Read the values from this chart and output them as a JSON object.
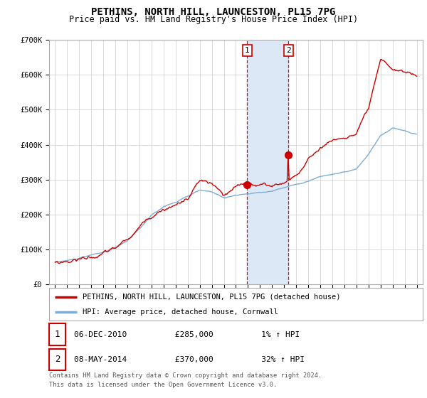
{
  "title": "PETHINS, NORTH HILL, LAUNCESTON, PL15 7PG",
  "subtitle": "Price paid vs. HM Land Registry's House Price Index (HPI)",
  "legend_line1": "PETHINS, NORTH HILL, LAUNCESTON, PL15 7PG (detached house)",
  "legend_line2": "HPI: Average price, detached house, Cornwall",
  "transaction1_label": "1",
  "transaction1_date": "06-DEC-2010",
  "transaction1_price": "£285,000",
  "transaction1_hpi": "1% ↑ HPI",
  "transaction2_label": "2",
  "transaction2_date": "08-MAY-2014",
  "transaction2_price": "£370,000",
  "transaction2_hpi": "32% ↑ HPI",
  "footer_line1": "Contains HM Land Registry data © Crown copyright and database right 2024.",
  "footer_line2": "This data is licensed under the Open Government Licence v3.0.",
  "hpi_color": "#7dadd4",
  "price_color": "#cc0000",
  "marker_color": "#cc0000",
  "vline_color": "#cc0000",
  "shade_color": "#dce8f5",
  "grid_color": "#cccccc",
  "background_color": "#ffffff",
  "border_color": "#aaaaaa",
  "ylim": [
    0,
    700000
  ],
  "yticks": [
    0,
    100000,
    200000,
    300000,
    400000,
    500000,
    600000,
    700000
  ],
  "ytick_labels": [
    "£0",
    "£100K",
    "£200K",
    "£300K",
    "£400K",
    "£500K",
    "£600K",
    "£700K"
  ],
  "xstart_year": 1995,
  "xend_year": 2025,
  "xlim_low": 1994.5,
  "xlim_high": 2025.5,
  "transaction1_x": 2010.92,
  "transaction1_y": 285000,
  "transaction2_x": 2014.36,
  "transaction2_y": 370000,
  "shade_x1": 2010.92,
  "shade_x2": 2014.36,
  "hpi_anchors_x": [
    1995,
    1996,
    1997,
    1998,
    1999,
    2000,
    2001,
    2002,
    2003,
    2004,
    2005,
    2006,
    2007,
    2008,
    2009,
    2010,
    2011,
    2012,
    2013,
    2014,
    2015,
    2016,
    2017,
    2018,
    2019,
    2020,
    2021,
    2022,
    2023,
    2024,
    2025
  ],
  "hpi_anchors_y": [
    65000,
    68000,
    74000,
    82000,
    90000,
    102000,
    122000,
    155000,
    195000,
    220000,
    233000,
    248000,
    265000,
    258000,
    243000,
    250000,
    253000,
    257000,
    262000,
    272000,
    282000,
    292000,
    305000,
    312000,
    317000,
    325000,
    365000,
    418000,
    440000,
    430000,
    420000
  ],
  "price_anchors_x": [
    1995,
    1996,
    1997,
    1998,
    1999,
    2000,
    2001,
    2002,
    2003,
    2004,
    2005,
    2006,
    2007,
    2008,
    2009,
    2010,
    2011,
    2012,
    2013,
    2014,
    2015,
    2016,
    2017,
    2018,
    2019,
    2020,
    2021,
    2022,
    2023,
    2024,
    2025
  ],
  "price_anchors_y": [
    62000,
    68000,
    76000,
    84000,
    93000,
    106000,
    128000,
    162000,
    200000,
    228000,
    238000,
    255000,
    305000,
    290000,
    250000,
    268000,
    278000,
    278000,
    273000,
    285000,
    310000,
    350000,
    390000,
    410000,
    420000,
    430000,
    490000,
    615000,
    590000,
    580000,
    570000
  ],
  "hpi_noise_seed": 10,
  "price_noise_seed": 20,
  "hpi_noise_scale": 3000,
  "price_noise_scale": 6000
}
